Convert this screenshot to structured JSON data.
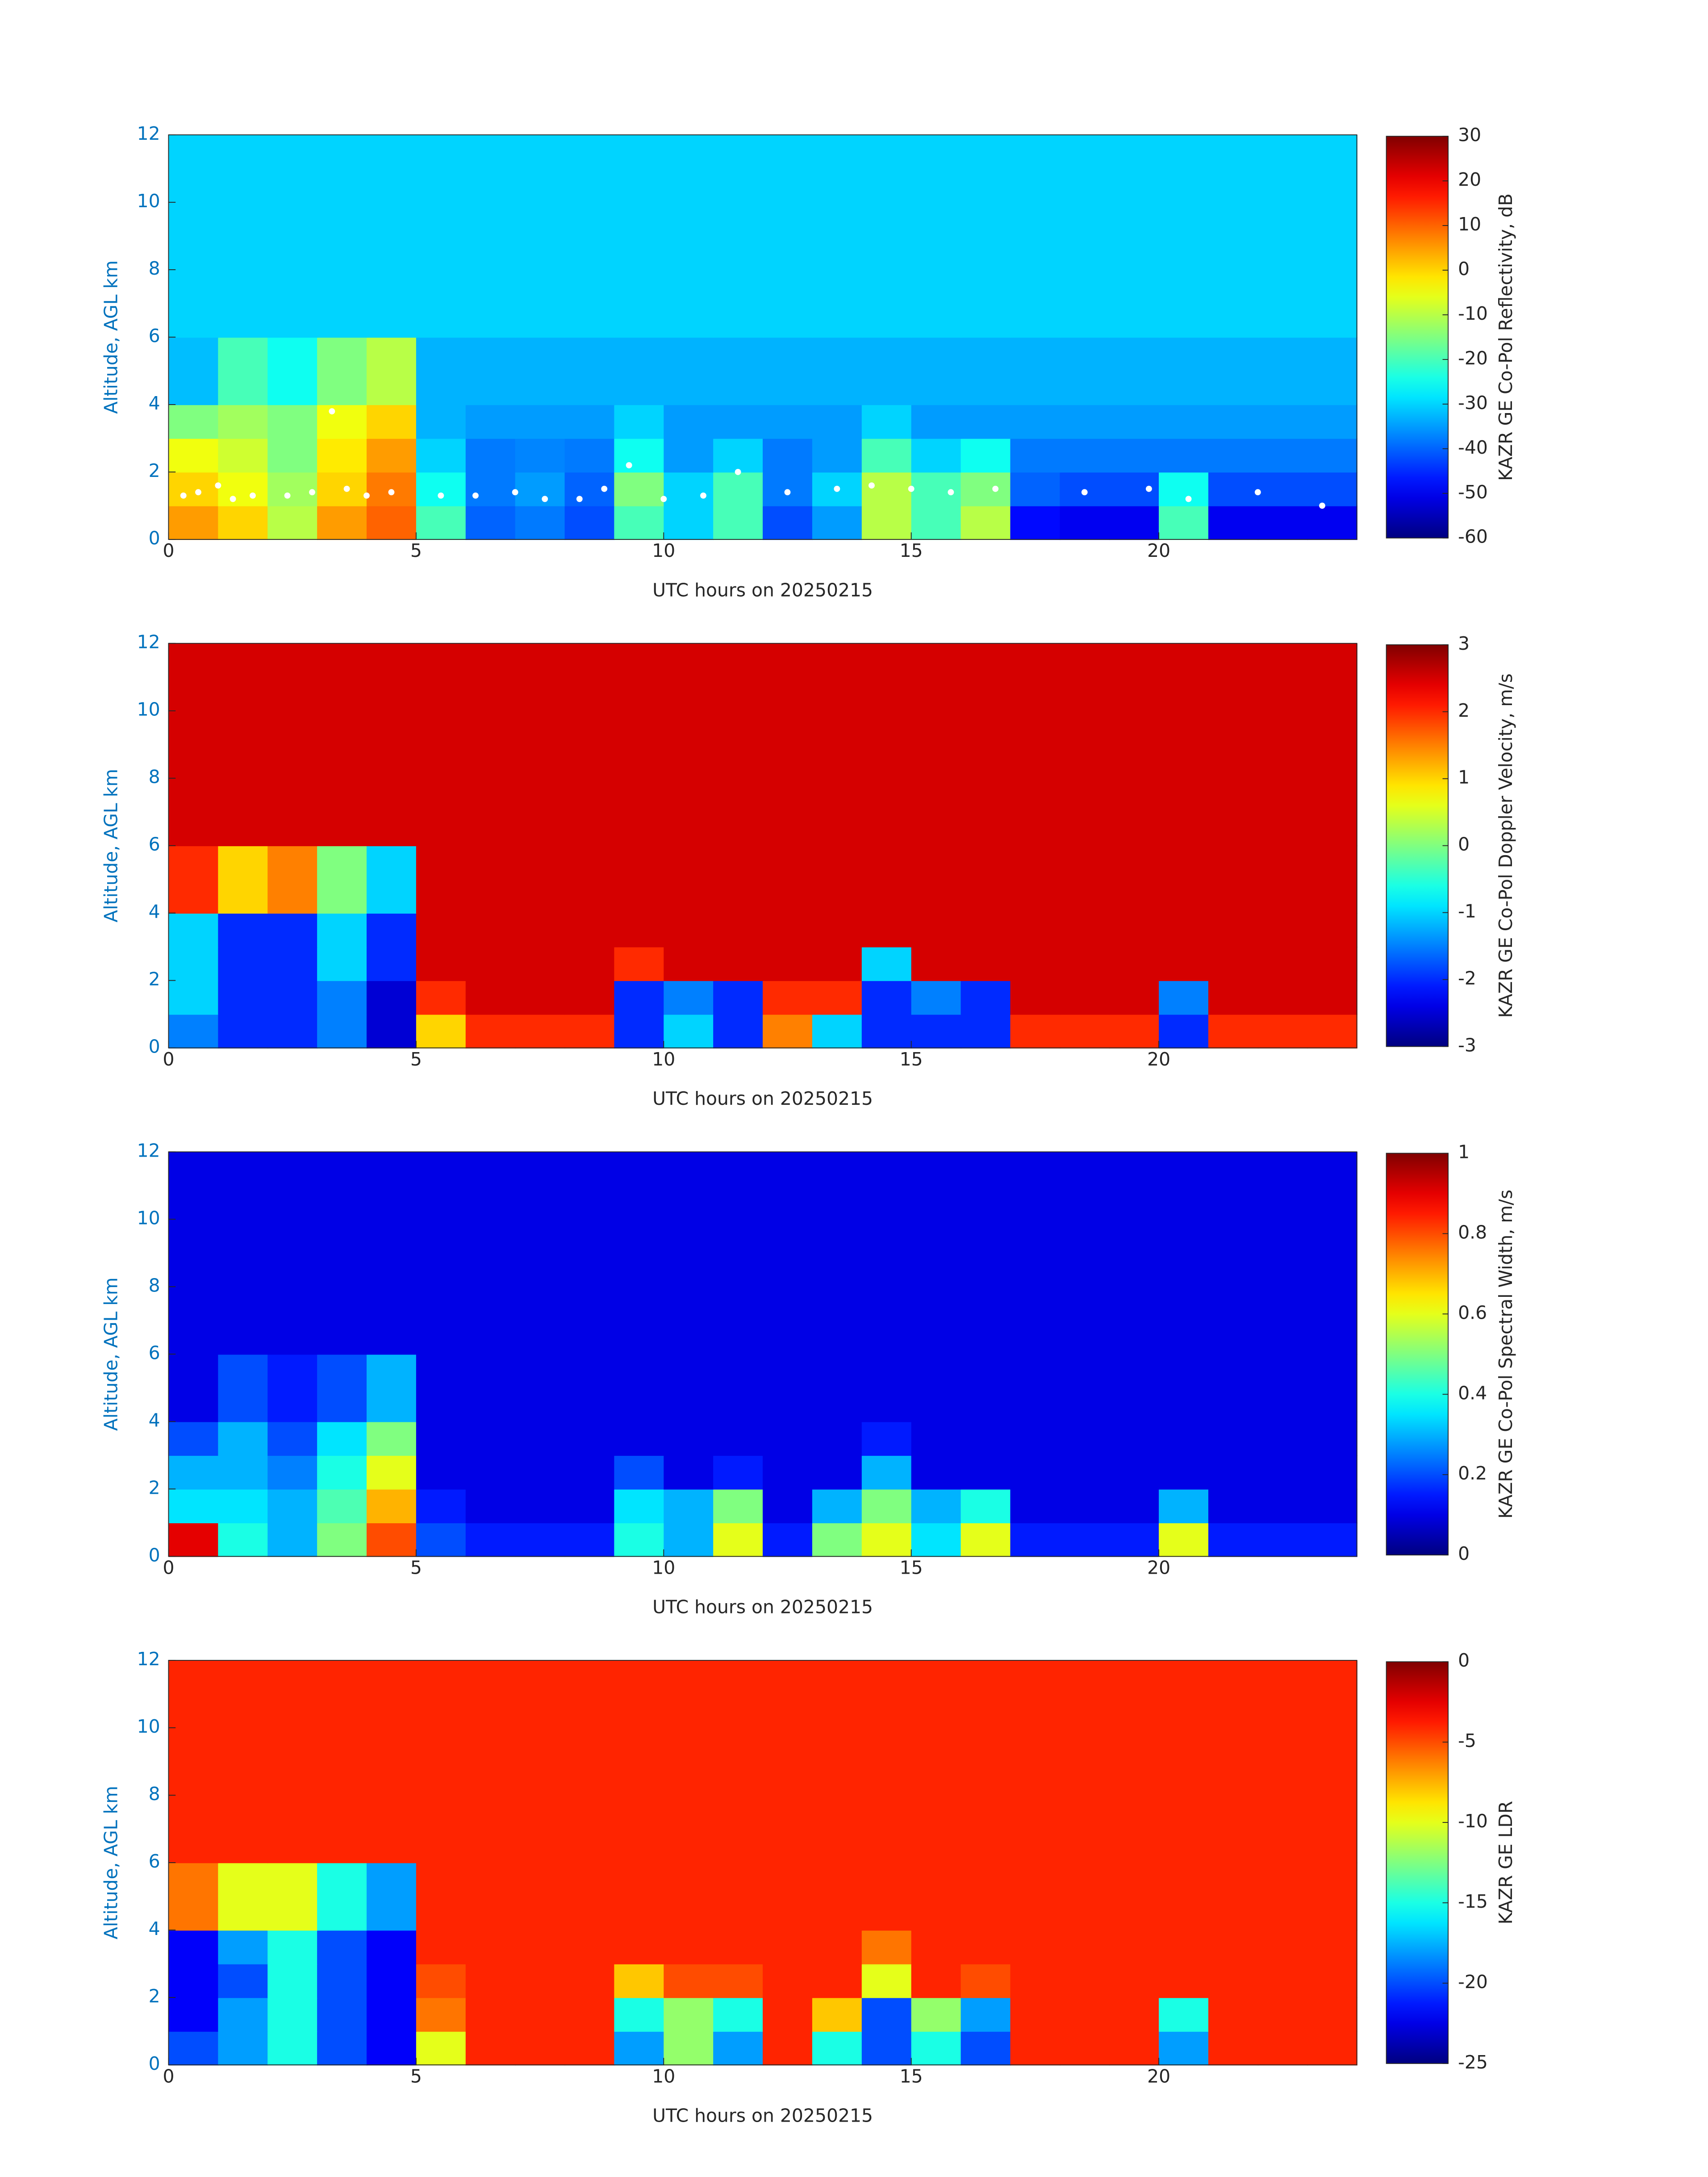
{
  "chart_data": [
    {
      "type": "heatmap",
      "colormap": "jet",
      "xlabel": "UTC hours on 20250215",
      "ylabel": "Altitude, AGL km",
      "colorbar_label": "KAZR GE Co-Pol Reflectivity, dB",
      "xlim": [
        0,
        24
      ],
      "ylim": [
        0,
        12
      ],
      "xticks": [
        0,
        5,
        10,
        15,
        20
      ],
      "yticks": [
        0,
        2,
        4,
        6,
        8,
        10,
        12
      ],
      "zlim": [
        -60,
        30
      ],
      "zticks": [
        -60,
        -50,
        -40,
        -30,
        -20,
        -10,
        0,
        10,
        20,
        30
      ],
      "x_edges": [
        0,
        1,
        2,
        3,
        4,
        5,
        6,
        7,
        8,
        9,
        10,
        11,
        12,
        13,
        14,
        15,
        16,
        17,
        18,
        19,
        20,
        21,
        22,
        23,
        24
      ],
      "y_edges": [
        0,
        1,
        2,
        3,
        4,
        6,
        12
      ],
      "z": [
        [
          5,
          0,
          -10,
          5,
          10,
          -20,
          -40,
          -38,
          -42,
          -20,
          -30,
          -20,
          -42,
          -35,
          -10,
          -20,
          -10,
          -48,
          -50,
          -50,
          -20,
          -50,
          -50,
          -50
        ],
        [
          0,
          -5,
          -12,
          0,
          8,
          -25,
          -38,
          -35,
          -40,
          -15,
          -30,
          -20,
          -38,
          -30,
          -10,
          -20,
          -15,
          -40,
          -42,
          -42,
          -25,
          -42,
          -42,
          -42
        ],
        [
          -5,
          -8,
          -15,
          -2,
          5,
          -30,
          -38,
          -37,
          -38,
          -25,
          -35,
          -30,
          -38,
          -35,
          -20,
          -30,
          -25,
          -38,
          -38,
          -38,
          -38,
          -38,
          -38,
          -38
        ],
        [
          -15,
          -12,
          -15,
          -5,
          0,
          -33,
          -35,
          -35,
          -35,
          -30,
          -35,
          -35,
          -35,
          -35,
          -30,
          -35,
          -35,
          -35,
          -35,
          -35,
          -35,
          -35,
          -35,
          -35
        ],
        [
          -32,
          -20,
          -25,
          -15,
          -10,
          -33,
          -33,
          -33,
          -33,
          -33,
          -33,
          -33,
          -33,
          -33,
          -33,
          -33,
          -33,
          -33,
          -33,
          -33,
          -33,
          -33,
          -33,
          -33
        ],
        [
          -30,
          -30,
          -30,
          -30,
          -30,
          -30,
          -30,
          -30,
          -30,
          -30,
          -30,
          -30,
          -30,
          -30,
          -30,
          -30,
          -30,
          -30,
          -30,
          -30,
          -30,
          -30,
          -30,
          -30
        ]
      ],
      "markers": {
        "color": "#ffffff",
        "x": [
          0.3,
          0.6,
          1.0,
          1.3,
          1.7,
          2.4,
          2.9,
          3.3,
          3.6,
          4.0,
          4.5,
          5.5,
          6.2,
          7.0,
          7.6,
          8.3,
          8.8,
          9.3,
          10.0,
          10.8,
          11.5,
          12.5,
          13.5,
          14.2,
          15.0,
          15.8,
          16.7,
          18.5,
          19.8,
          20.6,
          22.0,
          23.3
        ],
        "y": [
          1.3,
          1.4,
          1.6,
          1.2,
          1.3,
          1.3,
          1.4,
          3.8,
          1.5,
          1.3,
          1.4,
          1.3,
          1.3,
          1.4,
          1.2,
          1.2,
          1.5,
          2.2,
          1.2,
          1.3,
          2.0,
          1.4,
          1.5,
          1.6,
          1.5,
          1.4,
          1.5,
          1.4,
          1.5,
          1.2,
          1.4,
          1.0
        ]
      }
    },
    {
      "type": "heatmap",
      "colormap": "jet",
      "xlabel": "UTC hours on 20250215",
      "ylabel": "Altitude, AGL km",
      "colorbar_label": "KAZR GE Co-Pol Doppler Velocity, m/s",
      "xlim": [
        0,
        24
      ],
      "ylim": [
        0,
        12
      ],
      "xticks": [
        0,
        5,
        10,
        15,
        20
      ],
      "yticks": [
        0,
        2,
        4,
        6,
        8,
        10,
        12
      ],
      "zlim": [
        -3,
        3
      ],
      "zticks": [
        -3,
        -2,
        -1,
        0,
        1,
        2,
        3
      ],
      "x_edges": [
        0,
        1,
        2,
        3,
        4,
        5,
        6,
        7,
        8,
        9,
        10,
        11,
        12,
        13,
        14,
        15,
        16,
        17,
        18,
        19,
        20,
        21,
        22,
        23,
        24
      ],
      "y_edges": [
        0,
        1,
        2,
        3,
        4,
        6,
        12
      ],
      "z": [
        [
          -1.5,
          -2,
          -2,
          -1.5,
          -2.5,
          1,
          2,
          2,
          2,
          -2,
          -1,
          -2,
          1.5,
          -1,
          -2,
          -2,
          -2,
          2,
          2,
          2,
          -2,
          2,
          2,
          2
        ],
        [
          -1,
          -2,
          -2,
          -1.5,
          -2.5,
          2,
          2.5,
          2.5,
          2.5,
          -2,
          -1.5,
          -2,
          2,
          2,
          -2,
          -1.5,
          -2,
          2.5,
          2.5,
          2.5,
          -1.5,
          2.5,
          2.5,
          2.5
        ],
        [
          -1,
          -2,
          -2,
          -1,
          -2,
          2.5,
          2.5,
          2.5,
          2.5,
          2,
          2.5,
          2.5,
          2.5,
          2.5,
          -1,
          2.5,
          2.5,
          2.5,
          2.5,
          2.5,
          2.5,
          2.5,
          2.5,
          2.5
        ],
        [
          -1,
          -2,
          -2,
          -1,
          -2,
          2.5,
          2.5,
          2.5,
          2.5,
          2.5,
          2.5,
          2.5,
          2.5,
          2.5,
          2.5,
          2.5,
          2.5,
          2.5,
          2.5,
          2.5,
          2.5,
          2.5,
          2.5,
          2.5
        ],
        [
          2,
          1,
          1.5,
          0,
          -1,
          2.5,
          2.5,
          2.5,
          2.5,
          2.5,
          2.5,
          2.5,
          2.5,
          2.5,
          2.5,
          2.5,
          2.5,
          2.5,
          2.5,
          2.5,
          2.5,
          2.5,
          2.5,
          2.5
        ],
        [
          2.5,
          2.5,
          2.5,
          2.5,
          2.5,
          2.5,
          2.5,
          2.5,
          2.5,
          2.5,
          2.5,
          2.5,
          2.5,
          2.5,
          2.5,
          2.5,
          2.5,
          2.5,
          2.5,
          2.5,
          2.5,
          2.5,
          2.5,
          2.5
        ]
      ]
    },
    {
      "type": "heatmap",
      "colormap": "jet",
      "xlabel": "UTC hours on 20250215",
      "ylabel": "Altitude, AGL km",
      "colorbar_label": "KAZR GE Co-Pol Spectral Width, m/s",
      "xlim": [
        0,
        24
      ],
      "ylim": [
        0,
        12
      ],
      "xticks": [
        0,
        5,
        10,
        15,
        20
      ],
      "yticks": [
        0,
        2,
        4,
        6,
        8,
        10,
        12
      ],
      "zlim": [
        0,
        1
      ],
      "zticks": [
        0,
        0.2,
        0.4,
        0.6,
        0.8,
        1
      ],
      "x_edges": [
        0,
        1,
        2,
        3,
        4,
        5,
        6,
        7,
        8,
        9,
        10,
        11,
        12,
        13,
        14,
        15,
        16,
        17,
        18,
        19,
        20,
        21,
        22,
        23,
        24
      ],
      "y_edges": [
        0,
        1,
        2,
        3,
        4,
        6,
        12
      ],
      "z": [
        [
          0.9,
          0.4,
          0.3,
          0.5,
          0.8,
          0.2,
          0.15,
          0.15,
          0.15,
          0.4,
          0.3,
          0.6,
          0.15,
          0.5,
          0.6,
          0.35,
          0.6,
          0.15,
          0.15,
          0.15,
          0.6,
          0.15,
          0.15,
          0.15
        ],
        [
          0.35,
          0.35,
          0.3,
          0.45,
          0.7,
          0.15,
          0.1,
          0.1,
          0.1,
          0.35,
          0.3,
          0.5,
          0.1,
          0.3,
          0.5,
          0.3,
          0.4,
          0.1,
          0.1,
          0.1,
          0.3,
          0.1,
          0.1,
          0.1
        ],
        [
          0.3,
          0.3,
          0.25,
          0.4,
          0.6,
          0.1,
          0.1,
          0.1,
          0.1,
          0.2,
          0.1,
          0.15,
          0.1,
          0.1,
          0.3,
          0.1,
          0.1,
          0.1,
          0.1,
          0.1,
          0.1,
          0.1,
          0.1,
          0.1
        ],
        [
          0.2,
          0.3,
          0.2,
          0.35,
          0.5,
          0.1,
          0.1,
          0.1,
          0.1,
          0.1,
          0.1,
          0.1,
          0.1,
          0.1,
          0.15,
          0.1,
          0.1,
          0.1,
          0.1,
          0.1,
          0.1,
          0.1,
          0.1,
          0.1
        ],
        [
          0.1,
          0.2,
          0.15,
          0.2,
          0.3,
          0.1,
          0.1,
          0.1,
          0.1,
          0.1,
          0.1,
          0.1,
          0.1,
          0.1,
          0.1,
          0.1,
          0.1,
          0.1,
          0.1,
          0.1,
          0.1,
          0.1,
          0.1,
          0.1
        ],
        [
          0.1,
          0.1,
          0.1,
          0.1,
          0.1,
          0.1,
          0.1,
          0.1,
          0.1,
          0.1,
          0.1,
          0.1,
          0.1,
          0.1,
          0.1,
          0.1,
          0.1,
          0.1,
          0.1,
          0.1,
          0.1,
          0.1,
          0.1,
          0.1
        ]
      ]
    },
    {
      "type": "heatmap",
      "colormap": "jet",
      "xlabel": "UTC hours on 20250215",
      "ylabel": "Altitude, AGL km",
      "colorbar_label": "KAZR GE LDR",
      "xlim": [
        0,
        24
      ],
      "ylim": [
        0,
        12
      ],
      "xticks": [
        0,
        5,
        10,
        15,
        20
      ],
      "yticks": [
        0,
        2,
        4,
        6,
        8,
        10,
        12
      ],
      "zlim": [
        -25,
        0
      ],
      "zticks": [
        -25,
        -20,
        -15,
        -10,
        -5,
        0
      ],
      "x_edges": [
        0,
        1,
        2,
        3,
        4,
        5,
        6,
        7,
        8,
        9,
        10,
        11,
        12,
        13,
        14,
        15,
        16,
        17,
        18,
        19,
        20,
        21,
        22,
        23,
        24
      ],
      "y_edges": [
        0,
        1,
        2,
        3,
        4,
        6,
        12
      ],
      "z": [
        [
          -20,
          -18,
          -15,
          -20,
          -22,
          -10,
          -4,
          -4,
          -4,
          -18,
          -12,
          -18,
          -4,
          -15,
          -20,
          -15,
          -20,
          -4,
          -4,
          -4,
          -18,
          -4,
          -4,
          -4
        ],
        [
          -22,
          -18,
          -15,
          -20,
          -22,
          -6,
          -4,
          -4,
          -4,
          -15,
          -12,
          -15,
          -4,
          -8,
          -20,
          -12,
          -18,
          -4,
          -4,
          -4,
          -15,
          -4,
          -4,
          -4
        ],
        [
          -22,
          -20,
          -15,
          -20,
          -22,
          -5,
          -4,
          -4,
          -4,
          -8,
          -5,
          -5,
          -4,
          -4,
          -10,
          -4,
          -5,
          -4,
          -4,
          -4,
          -4,
          -4,
          -4,
          -4
        ],
        [
          -22,
          -18,
          -15,
          -20,
          -22,
          -4,
          -4,
          -4,
          -4,
          -4,
          -4,
          -4,
          -4,
          -4,
          -6,
          -4,
          -4,
          -4,
          -4,
          -4,
          -4,
          -4,
          -4,
          -4
        ],
        [
          -6,
          -10,
          -10,
          -15,
          -18,
          -4,
          -4,
          -4,
          -4,
          -4,
          -4,
          -4,
          -4,
          -4,
          -4,
          -4,
          -4,
          -4,
          -4,
          -4,
          -4,
          -4,
          -4,
          -4
        ],
        [
          -4,
          -4,
          -4,
          -4,
          -4,
          -4,
          -4,
          -4,
          -4,
          -4,
          -4,
          -4,
          -4,
          -4,
          -4,
          -4,
          -4,
          -4,
          -4,
          -4,
          -4,
          -4,
          -4,
          -4
        ]
      ]
    }
  ]
}
